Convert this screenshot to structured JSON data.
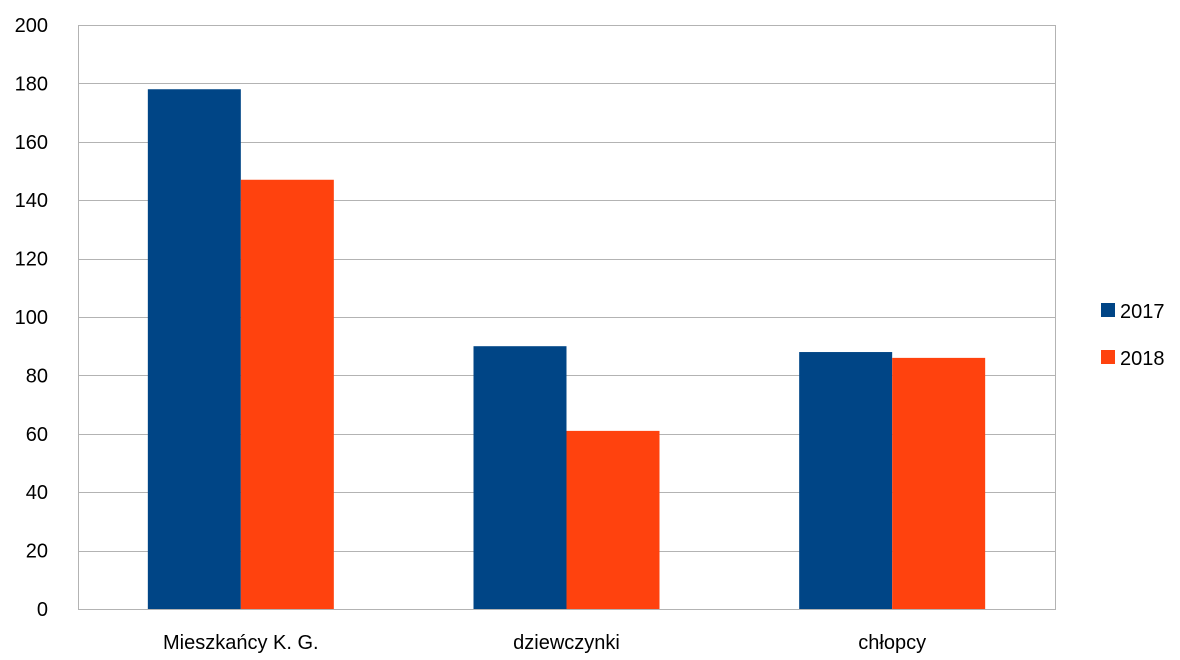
{
  "chart_data": {
    "type": "bar",
    "categories": [
      "Mieszkańcy K. G.",
      "dziewczynki",
      "chłopcy"
    ],
    "series": [
      {
        "name": "2017",
        "values": [
          178,
          90,
          88
        ],
        "color": "#004586"
      },
      {
        "name": "2018",
        "values": [
          147,
          61,
          86
        ],
        "color": "#FF420E"
      }
    ],
    "yticks": [
      "0",
      "20",
      "40",
      "60",
      "80",
      "100",
      "120",
      "140",
      "160",
      "180",
      "200"
    ],
    "ylim": [
      0,
      200
    ],
    "grid": true,
    "legend_position": "right"
  }
}
